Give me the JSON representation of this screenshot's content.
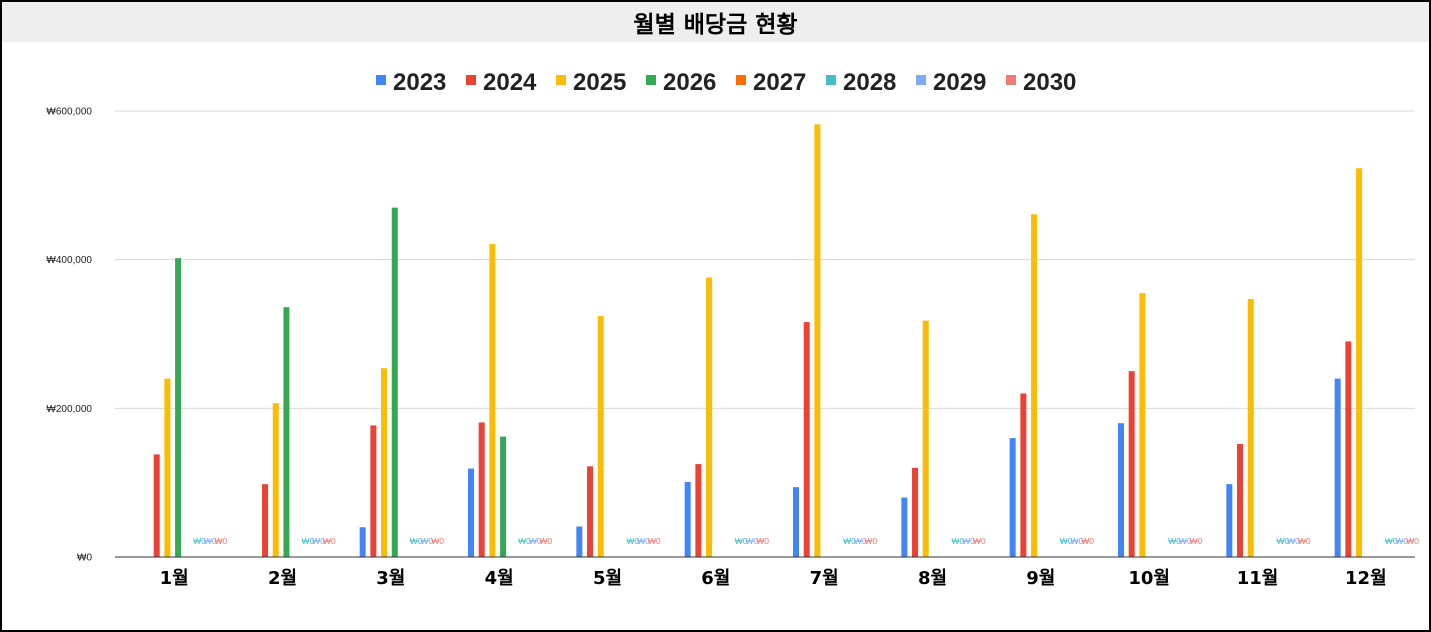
{
  "header": {
    "title": "월별 배당금 현황"
  },
  "chart_data": {
    "type": "bar",
    "title": "월별 배당금 현황",
    "xlabel": "",
    "ylabel": "",
    "categories": [
      "1월",
      "2월",
      "3월",
      "4월",
      "5월",
      "6월",
      "7월",
      "8월",
      "9월",
      "10월",
      "11월",
      "12월"
    ],
    "ylim": [
      0,
      600000
    ],
    "yticks": [
      0,
      200000,
      400000,
      600000
    ],
    "ytick_labels": [
      "₩0",
      "₩200,000",
      "₩400,000",
      "₩600,000"
    ],
    "grid": true,
    "legend_position": "top-center",
    "zero_value_label": "₩0",
    "series": [
      {
        "name": "2023",
        "color": "#4285F4",
        "values": [
          0,
          0,
          40000,
          119000,
          41000,
          101000,
          94000,
          80000,
          160000,
          180000,
          98000,
          240000
        ]
      },
      {
        "name": "2024",
        "color": "#EA4335",
        "values": [
          138000,
          98000,
          177000,
          181000,
          122000,
          125000,
          316000,
          120000,
          220000,
          250000,
          152000,
          290000
        ]
      },
      {
        "name": "2025",
        "color": "#FBBC04",
        "values": [
          240000,
          207000,
          254000,
          421000,
          324000,
          376000,
          582000,
          318000,
          461000,
          355000,
          347000,
          523000
        ]
      },
      {
        "name": "2026",
        "color": "#34A853",
        "values": [
          402000,
          336000,
          470000,
          162000,
          0,
          0,
          0,
          0,
          0,
          0,
          0,
          0
        ]
      },
      {
        "name": "2027",
        "color": "#FF6D01",
        "values": [
          0,
          0,
          0,
          0,
          0,
          0,
          0,
          0,
          0,
          0,
          0,
          0
        ]
      },
      {
        "name": "2028",
        "color": "#46BDC6",
        "values": [
          0,
          0,
          0,
          0,
          0,
          0,
          0,
          0,
          0,
          0,
          0,
          0
        ]
      },
      {
        "name": "2029",
        "color": "#7BAAF7",
        "values": [
          0,
          0,
          0,
          0,
          0,
          0,
          0,
          0,
          0,
          0,
          0,
          0
        ]
      },
      {
        "name": "2030",
        "color": "#F07B72",
        "values": [
          0,
          0,
          0,
          0,
          0,
          0,
          0,
          0,
          0,
          0,
          0,
          0
        ]
      }
    ]
  }
}
